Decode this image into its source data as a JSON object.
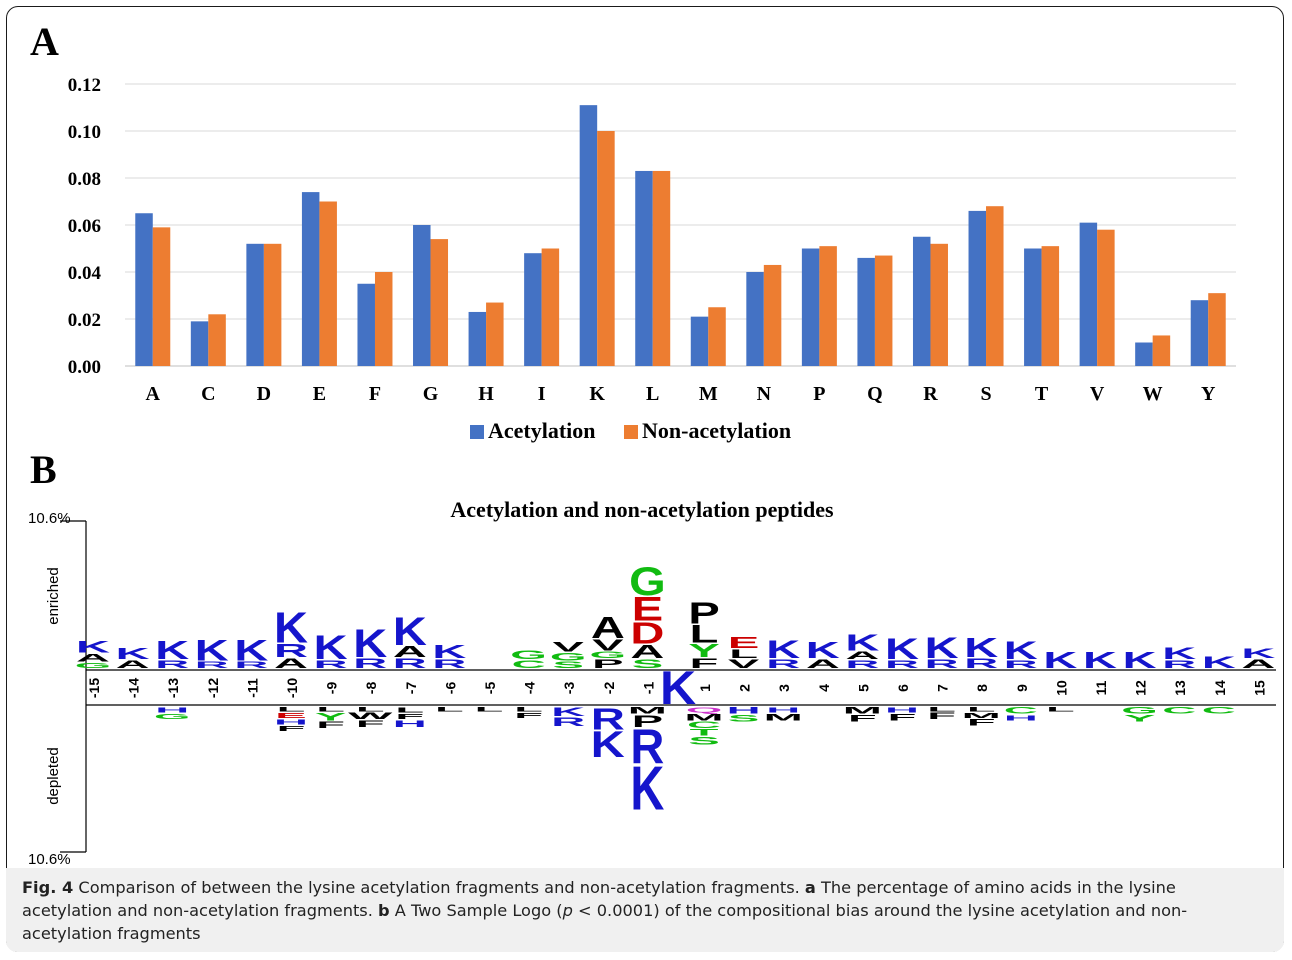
{
  "panels": {
    "a_label": "A",
    "b_label": "B"
  },
  "chart_data": [
    {
      "type": "bar",
      "categories": [
        "A",
        "C",
        "D",
        "E",
        "F",
        "G",
        "H",
        "I",
        "K",
        "L",
        "M",
        "N",
        "P",
        "Q",
        "R",
        "S",
        "T",
        "V",
        "W",
        "Y"
      ],
      "series": [
        {
          "name": "Acetylation",
          "color": "#4472C4",
          "values": [
            0.065,
            0.019,
            0.052,
            0.074,
            0.035,
            0.06,
            0.023,
            0.048,
            0.111,
            0.083,
            0.021,
            0.04,
            0.05,
            0.046,
            0.055,
            0.066,
            0.05,
            0.061,
            0.01,
            0.028
          ]
        },
        {
          "name": "Non-acetylation",
          "color": "#ED7D31",
          "values": [
            0.059,
            0.022,
            0.052,
            0.07,
            0.04,
            0.054,
            0.027,
            0.05,
            0.1,
            0.083,
            0.025,
            0.043,
            0.051,
            0.047,
            0.052,
            0.068,
            0.051,
            0.058,
            0.013,
            0.031
          ]
        }
      ],
      "yticks": [
        "0.00",
        "0.02",
        "0.04",
        "0.06",
        "0.08",
        "0.10",
        "0.12"
      ],
      "ylim": [
        0,
        0.12
      ],
      "grid": true,
      "legend": "bottom"
    },
    {
      "type": "sequence-logo",
      "title": "Acetylation and non-acetylation peptides",
      "ylabel_top": "enriched",
      "ylabel_bottom": "depleted",
      "scale_top": "10.6%",
      "scale_bottom": "10.6%",
      "center_residue": "K",
      "positions": [
        "-15",
        "-14",
        "-13",
        "-12",
        "-11",
        "-10",
        "-9",
        "-8",
        "-7",
        "-6",
        "-5",
        "-4",
        "-3",
        "-2",
        "-1",
        "1",
        "2",
        "3",
        "4",
        "5",
        "6",
        "7",
        "8",
        "9",
        "10",
        "11",
        "12",
        "13",
        "14",
        "15"
      ],
      "enriched": [
        [
          [
            "G",
            0.25
          ],
          [
            "A",
            0.35
          ],
          [
            "K",
            0.55
          ]
        ],
        [
          [
            "A",
            0.35
          ],
          [
            "K",
            0.5
          ]
        ],
        [
          [
            "R",
            0.35
          ],
          [
            "K",
            0.85
          ]
        ],
        [
          [
            "R",
            0.3
          ],
          [
            "K",
            0.95
          ]
        ],
        [
          [
            "R",
            0.3
          ],
          [
            "K",
            0.95
          ]
        ],
        [
          [
            "A",
            0.45
          ],
          [
            "R",
            0.6
          ],
          [
            "K",
            1.4
          ]
        ],
        [
          [
            "R",
            0.35
          ],
          [
            "K",
            1.1
          ]
        ],
        [
          [
            "R",
            0.45
          ],
          [
            "K",
            1.3
          ]
        ],
        [
          [
            "R",
            0.45
          ],
          [
            "A",
            0.5
          ],
          [
            "K",
            1.3
          ]
        ],
        [
          [
            "R",
            0.4
          ],
          [
            "K",
            0.6
          ]
        ],
        [],
        [
          [
            "C",
            0.35
          ],
          [
            "G",
            0.4
          ]
        ],
        [
          [
            "S",
            0.3
          ],
          [
            "G",
            0.35
          ],
          [
            "V",
            0.45
          ]
        ],
        [
          [
            "P",
            0.4
          ],
          [
            "G",
            0.3
          ],
          [
            "V",
            0.5
          ],
          [
            "A",
            1.0
          ]
        ],
        [
          [
            "S",
            0.4
          ],
          [
            "A",
            0.6
          ],
          [
            "D",
            1.0
          ],
          [
            "E",
            1.1
          ],
          [
            "G",
            1.3
          ]
        ],
        [
          [
            "F",
            0.45
          ],
          [
            "Y",
            0.6
          ],
          [
            "L",
            0.8
          ],
          [
            "P",
            1.0
          ]
        ],
        [
          [
            "V",
            0.4
          ],
          [
            "L",
            0.4
          ],
          [
            "E",
            0.5
          ]
        ],
        [
          [
            "R",
            0.4
          ],
          [
            "K",
            0.8
          ]
        ],
        [
          [
            "A",
            0.4
          ],
          [
            "K",
            0.75
          ]
        ],
        [
          [
            "R",
            0.35
          ],
          [
            "A",
            0.35
          ],
          [
            "K",
            0.75
          ]
        ],
        [
          [
            "R",
            0.35
          ],
          [
            "K",
            0.95
          ]
        ],
        [
          [
            "R",
            0.4
          ],
          [
            "K",
            0.95
          ]
        ],
        [
          [
            "R",
            0.45
          ],
          [
            "K",
            0.9
          ]
        ],
        [
          [
            "R",
            0.35
          ],
          [
            "K",
            0.8
          ]
        ],
        [
          [
            "K",
            0.75
          ]
        ],
        [
          [
            "K",
            0.75
          ]
        ],
        [
          [
            "K",
            0.75
          ]
        ],
        [
          [
            "R",
            0.35
          ],
          [
            "K",
            0.55
          ]
        ],
        [
          [
            "K",
            0.55
          ]
        ],
        [
          [
            "A",
            0.4
          ],
          [
            "K",
            0.45
          ]
        ]
      ],
      "depleted": [
        [],
        [],
        [
          [
            "H",
            0.25
          ],
          [
            "G",
            0.25
          ]
        ],
        [],
        [],
        [
          [
            "L",
            0.2
          ],
          [
            "E",
            0.25
          ],
          [
            "H",
            0.25
          ],
          [
            "F",
            0.25
          ]
        ],
        [
          [
            "L",
            0.2
          ],
          [
            "Y",
            0.35
          ],
          [
            "F",
            0.3
          ]
        ],
        [
          [
            "L",
            0.2
          ],
          [
            "W",
            0.3
          ],
          [
            "F",
            0.3
          ]
        ],
        [
          [
            "L",
            0.25
          ],
          [
            "F",
            0.25
          ],
          [
            "H",
            0.3
          ]
        ],
        [
          [
            "L",
            0.2
          ]
        ],
        [
          [
            "L",
            0.2
          ]
        ],
        [
          [
            "L",
            0.2
          ],
          [
            "F",
            0.25
          ]
        ],
        [
          [
            "K",
            0.4
          ],
          [
            "R",
            0.4
          ]
        ],
        [
          [
            "R",
            1.0
          ],
          [
            "K",
            1.2
          ]
        ],
        [
          [
            "M",
            0.3
          ],
          [
            "P",
            0.55
          ],
          [
            "R",
            1.6
          ],
          [
            "K",
            2.0
          ]
        ],
        [
          [
            "Q",
            0.25
          ],
          [
            "M",
            0.3
          ],
          [
            "C",
            0.3
          ],
          [
            "T",
            0.3
          ],
          [
            "S",
            0.35
          ]
        ],
        [
          [
            "H",
            0.3
          ],
          [
            "S",
            0.3
          ]
        ],
        [
          [
            "H",
            0.25
          ],
          [
            "M",
            0.3
          ]
        ],
        [],
        [
          [
            "M",
            0.3
          ],
          [
            "F",
            0.3
          ]
        ],
        [
          [
            "H",
            0.25
          ],
          [
            "F",
            0.3
          ]
        ],
        [
          [
            "L",
            0.2
          ],
          [
            "F",
            0.3
          ]
        ],
        [
          [
            "L",
            0.2
          ],
          [
            "M",
            0.25
          ],
          [
            "F",
            0.3
          ]
        ],
        [
          [
            "C",
            0.3
          ],
          [
            "H",
            0.25
          ]
        ],
        [
          [
            "L",
            0.2
          ]
        ],
        [],
        [
          [
            "G",
            0.3
          ],
          [
            "Y",
            0.3
          ]
        ],
        [
          [
            "C",
            0.3
          ]
        ],
        [
          [
            "C",
            0.3
          ]
        ],
        []
      ]
    }
  ],
  "caption": {
    "fig": "Fig. 4",
    "part1": " Comparison of between the lysine acetylation fragments and non-acetylation fragments. ",
    "a": "a",
    "part2": " The percentage of amino acids in the lysine acetylation and non-acetylation fragments. ",
    "b": "b",
    "part3": " A Two Sample Logo (",
    "p": "p",
    "part4": " < 0.0001) of the compositional bias around the lysine acetylation and non-acetylation fragments"
  }
}
